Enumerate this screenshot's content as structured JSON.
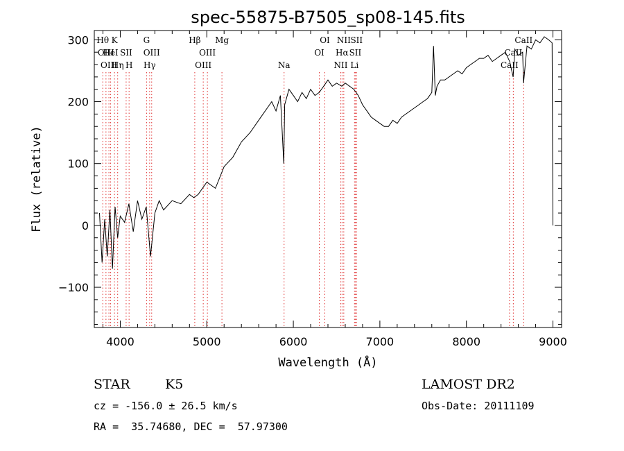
{
  "chart_data": {
    "type": "line",
    "title": "spec-55875-B7505_sp08-145.fits",
    "xlabel": "Wavelength (Å)",
    "ylabel": "Flux (relative)",
    "xlim": [
      3700,
      9100
    ],
    "ylim": [
      -165,
      315
    ],
    "xticks": [
      4000,
      5000,
      6000,
      7000,
      8000,
      9000
    ],
    "yticks": [
      -100,
      0,
      100,
      200,
      300
    ],
    "series": [
      {
        "x": [
          3760,
          3790,
          3820,
          3850,
          3880,
          3910,
          3940,
          3970,
          4000,
          4050,
          4100,
          4150,
          4200,
          4250,
          4300,
          4350,
          4400,
          4450,
          4500,
          4600,
          4700,
          4800,
          4850,
          4900,
          5000,
          5100,
          5200,
          5300,
          5400,
          5500,
          5600,
          5700,
          5750,
          5800,
          5850,
          5890,
          5900,
          5950,
          6000,
          6050,
          6100,
          6150,
          6200,
          6250,
          6300,
          6350,
          6400,
          6450,
          6500,
          6560,
          6600,
          6700,
          6750,
          6800,
          6850,
          6900,
          6950,
          7000,
          7050,
          7100,
          7150,
          7200,
          7250,
          7300,
          7350,
          7400,
          7450,
          7500,
          7550,
          7600,
          7620,
          7640,
          7660,
          7680,
          7700,
          7750,
          7800,
          7850,
          7900,
          7950,
          8000,
          8050,
          8100,
          8150,
          8200,
          8250,
          8300,
          8350,
          8400,
          8450,
          8500,
          8540,
          8560,
          8600,
          8650,
          8660,
          8700,
          8750,
          8800,
          8850,
          8900,
          8950,
          8990,
          9000
        ],
        "values": [
          20,
          -60,
          10,
          -50,
          25,
          -70,
          30,
          -20,
          15,
          5,
          35,
          -10,
          40,
          10,
          30,
          -50,
          20,
          40,
          25,
          40,
          35,
          50,
          45,
          50,
          70,
          60,
          95,
          110,
          135,
          150,
          170,
          190,
          200,
          185,
          210,
          100,
          195,
          220,
          210,
          200,
          215,
          205,
          220,
          210,
          215,
          225,
          235,
          225,
          230,
          225,
          230,
          220,
          210,
          195,
          185,
          175,
          170,
          165,
          160,
          160,
          170,
          165,
          175,
          180,
          185,
          190,
          195,
          200,
          205,
          215,
          290,
          210,
          225,
          230,
          235,
          235,
          240,
          245,
          250,
          245,
          255,
          260,
          265,
          270,
          270,
          275,
          265,
          270,
          275,
          280,
          265,
          240,
          285,
          275,
          280,
          230,
          290,
          285,
          300,
          295,
          305,
          300,
          295,
          0
        ]
      }
    ],
    "lines": [
      {
        "x": 3798,
        "labels": [
          "Hθ"
        ],
        "row": 0
      },
      {
        "x": 3835,
        "labels": [
          "OIII"
        ],
        "row": 1
      },
      {
        "x": 3869,
        "labels": [
          "OIII"
        ],
        "row": 2
      },
      {
        "x": 3889,
        "labels": [
          "HeI"
        ],
        "row": 1
      },
      {
        "x": 3933,
        "labels": [
          "K"
        ],
        "row": 0
      },
      {
        "x": 3970,
        "labels": [
          "Hη"
        ],
        "row": 2
      },
      {
        "x": 4068,
        "labels": [
          "SII"
        ],
        "row": 1
      },
      {
        "x": 4102,
        "labels": [
          "H"
        ],
        "row": 2
      },
      {
        "x": 4304,
        "labels": [
          "G"
        ],
        "row": 0
      },
      {
        "x": 4340,
        "labels": [
          "Hγ"
        ],
        "row": 2
      },
      {
        "x": 4363,
        "labels": [
          "OIII"
        ],
        "row": 1
      },
      {
        "x": 4861,
        "labels": [
          "Hβ"
        ],
        "row": 0
      },
      {
        "x": 4959,
        "labels": [
          "OIII"
        ],
        "row": 2
      },
      {
        "x": 5007,
        "labels": [
          "OIII"
        ],
        "row": 1
      },
      {
        "x": 5175,
        "labels": [
          "Mg"
        ],
        "row": 0
      },
      {
        "x": 5893,
        "labels": [
          "Na"
        ],
        "row": 2
      },
      {
        "x": 6300,
        "labels": [
          "OI"
        ],
        "row": 1
      },
      {
        "x": 6364,
        "labels": [
          "OI"
        ],
        "row": 0
      },
      {
        "x": 6548,
        "labels": [
          "NII"
        ],
        "row": 2
      },
      {
        "x": 6563,
        "labels": [
          "Hα"
        ],
        "row": 1
      },
      {
        "x": 6583,
        "labels": [
          "NII"
        ],
        "row": 0
      },
      {
        "x": 6707,
        "labels": [
          "Li"
        ],
        "row": 2
      },
      {
        "x": 6716,
        "labels": [
          "SII"
        ],
        "row": 1
      },
      {
        "x": 6731,
        "labels": [
          "SII"
        ],
        "row": 0
      },
      {
        "x": 8498,
        "labels": [
          "CaII"
        ],
        "row": 2
      },
      {
        "x": 8542,
        "labels": [
          "CaII"
        ],
        "row": 1
      },
      {
        "x": 8662,
        "labels": [
          "CaII"
        ],
        "row": 0
      }
    ],
    "grid": false
  },
  "info": {
    "class": "STAR",
    "subclass": "K5",
    "survey": "LAMOST DR2",
    "cz": "cz = -156.0 ± 26.5 km/s",
    "obs_date": "Obs-Date: 20111109",
    "radec": "RA =  35.74680, DEC =  57.97300"
  },
  "colors": {
    "spectrum": "#000000",
    "line_markers": "#e03030",
    "axes": "#000000"
  }
}
